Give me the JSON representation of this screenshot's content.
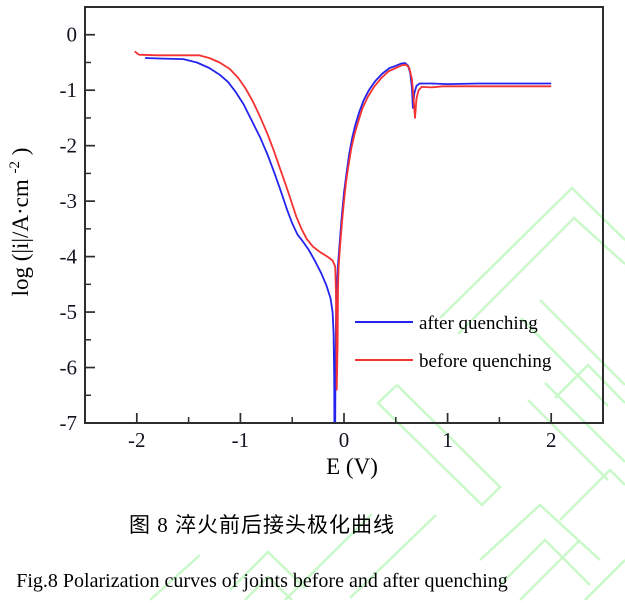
{
  "figure": {
    "caption_zh": "图 8  淬火前后接头极化曲线",
    "caption_en": "Fig.8 Polarization curves of joints before and after quenching"
  },
  "chart_data": {
    "type": "line",
    "title": "",
    "xlabel": "E (V)",
    "ylabel": "log (|i|/A·cm⁻²)",
    "ylabel_parts": {
      "main": "log (|i|/A·cm",
      "sup": "-2",
      "close": ")"
    },
    "xlim": [
      -2.5,
      2.5
    ],
    "ylim": [
      -7,
      0.5
    ],
    "xticks": [
      -2,
      -1,
      0,
      1,
      2
    ],
    "yticks": [
      0,
      -1,
      -2,
      -3,
      -4,
      -5,
      -6,
      -7
    ],
    "minor_xticks": [
      -1.5,
      -0.5,
      0.5,
      1.5
    ],
    "minor_yticks": [
      -0.5,
      -1.5,
      -2.5,
      -3.5,
      -4.5,
      -5.5,
      -6.5
    ],
    "grid": false,
    "legend_position": "inside right-middle",
    "series": [
      {
        "name": "after quenching",
        "color": "#2424ee",
        "points": [
          [
            -1.92,
            -0.42
          ],
          [
            -1.75,
            -0.43
          ],
          [
            -1.55,
            -0.44
          ],
          [
            -1.42,
            -0.5
          ],
          [
            -1.3,
            -0.6
          ],
          [
            -1.2,
            -0.72
          ],
          [
            -1.12,
            -0.85
          ],
          [
            -1.05,
            -1.02
          ],
          [
            -0.97,
            -1.25
          ],
          [
            -0.89,
            -1.55
          ],
          [
            -0.81,
            -1.85
          ],
          [
            -0.74,
            -2.15
          ],
          [
            -0.67,
            -2.5
          ],
          [
            -0.61,
            -2.82
          ],
          [
            -0.55,
            -3.15
          ],
          [
            -0.5,
            -3.4
          ],
          [
            -0.45,
            -3.6
          ],
          [
            -0.4,
            -3.72
          ],
          [
            -0.34,
            -3.88
          ],
          [
            -0.28,
            -4.08
          ],
          [
            -0.22,
            -4.3
          ],
          [
            -0.17,
            -4.52
          ],
          [
            -0.13,
            -4.75
          ],
          [
            -0.11,
            -5.0
          ],
          [
            -0.1,
            -5.4
          ],
          [
            -0.095,
            -6.2
          ],
          [
            -0.093,
            -7.0
          ],
          [
            -0.085,
            -7.0
          ],
          [
            -0.082,
            -6.0
          ],
          [
            -0.078,
            -5.2
          ],
          [
            -0.072,
            -4.75
          ],
          [
            -0.06,
            -4.2
          ],
          [
            -0.04,
            -3.7
          ],
          [
            -0.02,
            -3.25
          ],
          [
            0.0,
            -2.85
          ],
          [
            0.02,
            -2.55
          ],
          [
            0.05,
            -2.15
          ],
          [
            0.08,
            -1.85
          ],
          [
            0.11,
            -1.62
          ],
          [
            0.15,
            -1.38
          ],
          [
            0.19,
            -1.18
          ],
          [
            0.24,
            -1.0
          ],
          [
            0.3,
            -0.84
          ],
          [
            0.37,
            -0.7
          ],
          [
            0.44,
            -0.6
          ],
          [
            0.5,
            -0.56
          ],
          [
            0.55,
            -0.52
          ],
          [
            0.59,
            -0.51
          ],
          [
            0.62,
            -0.56
          ],
          [
            0.64,
            -0.7
          ],
          [
            0.655,
            -0.95
          ],
          [
            0.665,
            -1.32
          ],
          [
            0.68,
            -1.05
          ],
          [
            0.7,
            -0.92
          ],
          [
            0.73,
            -0.88
          ],
          [
            0.85,
            -0.88
          ],
          [
            1.0,
            -0.89
          ],
          [
            1.3,
            -0.88
          ],
          [
            1.6,
            -0.88
          ],
          [
            2.0,
            -0.88
          ]
        ]
      },
      {
        "name": "before quenching",
        "color": "#f53232",
        "points": [
          [
            -2.02,
            -0.3
          ],
          [
            -1.98,
            -0.36
          ],
          [
            -1.8,
            -0.37
          ],
          [
            -1.6,
            -0.37
          ],
          [
            -1.4,
            -0.37
          ],
          [
            -1.3,
            -0.42
          ],
          [
            -1.2,
            -0.5
          ],
          [
            -1.1,
            -0.62
          ],
          [
            -1.02,
            -0.78
          ],
          [
            -0.95,
            -0.97
          ],
          [
            -0.88,
            -1.2
          ],
          [
            -0.81,
            -1.48
          ],
          [
            -0.74,
            -1.78
          ],
          [
            -0.68,
            -2.08
          ],
          [
            -0.62,
            -2.4
          ],
          [
            -0.56,
            -2.72
          ],
          [
            -0.51,
            -3.0
          ],
          [
            -0.46,
            -3.28
          ],
          [
            -0.41,
            -3.5
          ],
          [
            -0.36,
            -3.68
          ],
          [
            -0.3,
            -3.82
          ],
          [
            -0.23,
            -3.92
          ],
          [
            -0.16,
            -4.0
          ],
          [
            -0.11,
            -4.07
          ],
          [
            -0.085,
            -4.18
          ],
          [
            -0.078,
            -4.6
          ],
          [
            -0.073,
            -5.5
          ],
          [
            -0.07,
            -6.4
          ],
          [
            -0.062,
            -5.6
          ],
          [
            -0.058,
            -4.6
          ],
          [
            -0.052,
            -4.2
          ],
          [
            -0.04,
            -3.85
          ],
          [
            -0.02,
            -3.4
          ],
          [
            0.0,
            -3.0
          ],
          [
            0.02,
            -2.65
          ],
          [
            0.04,
            -2.4
          ],
          [
            0.07,
            -2.05
          ],
          [
            0.1,
            -1.8
          ],
          [
            0.14,
            -1.55
          ],
          [
            0.18,
            -1.32
          ],
          [
            0.23,
            -1.12
          ],
          [
            0.29,
            -0.94
          ],
          [
            0.36,
            -0.78
          ],
          [
            0.43,
            -0.66
          ],
          [
            0.5,
            -0.6
          ],
          [
            0.56,
            -0.55
          ],
          [
            0.6,
            -0.54
          ],
          [
            0.63,
            -0.6
          ],
          [
            0.655,
            -0.8
          ],
          [
            0.67,
            -1.1
          ],
          [
            0.685,
            -1.5
          ],
          [
            0.7,
            -1.15
          ],
          [
            0.72,
            -1.0
          ],
          [
            0.75,
            -0.94
          ],
          [
            0.85,
            -0.95
          ],
          [
            0.95,
            -0.93
          ],
          [
            1.2,
            -0.93
          ],
          [
            1.5,
            -0.93
          ],
          [
            1.75,
            -0.93
          ],
          [
            2.0,
            -0.93
          ]
        ]
      }
    ]
  },
  "decor": {
    "watermark_color": "#c9f8c9",
    "axis_color": "#2d2d2d",
    "tick_label_color": "#121220"
  }
}
